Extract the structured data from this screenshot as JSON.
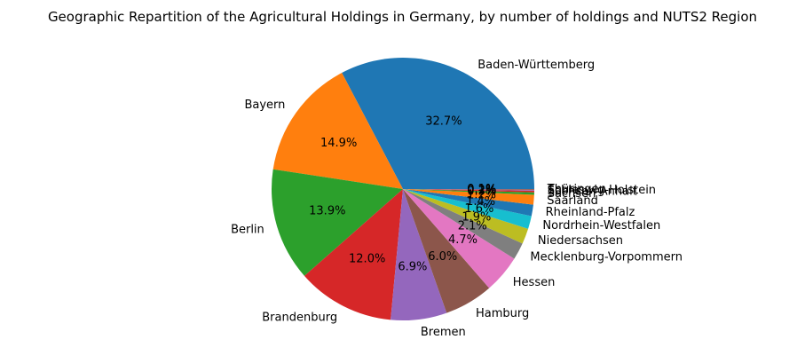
{
  "chart_data": {
    "type": "pie",
    "title": "Geographic Repartition of the Agricultural Holdings in Germany, by number of holdings and NUTS2 Region",
    "categories": [
      "Baden-Württemberg",
      "Bayern",
      "Berlin",
      "Brandenburg",
      "Bremen",
      "Hamburg",
      "Hessen",
      "Mecklenburg-Vorpommern",
      "Niedersachsen",
      "Nordrhein-Westfalen",
      "Rheinland-Pfalz",
      "Saarland",
      "Sachsen",
      "Sachsen-Anhalt",
      "Schleswig-Holstein",
      "Thüringen"
    ],
    "values": [
      32.7,
      14.9,
      13.9,
      12.0,
      6.9,
      6.0,
      4.7,
      2.1,
      1.9,
      1.6,
      1.4,
      1.2,
      0.3,
      0.2,
      0.1,
      0.1
    ],
    "value_labels": [
      "32.7%",
      "14.9%",
      "13.9%",
      "12.0%",
      "6.9%",
      "6.0%",
      "4.7%",
      "2.1%",
      "1.9%",
      "1.6%",
      "1.4%",
      "1.2%",
      "0.3%",
      "0.2%",
      "0.1%",
      "0.1%"
    ],
    "colors": [
      "#1f77b4",
      "#ff7f0e",
      "#2ca02c",
      "#d62728",
      "#9467bd",
      "#8c564b",
      "#e377c2",
      "#7f7f7f",
      "#bcbd22",
      "#17becf",
      "#1f77b4",
      "#ff7f0e",
      "#2ca02c",
      "#d62728",
      "#9467bd",
      "#8c564b"
    ],
    "start_angle": 0,
    "direction": "counterclockwise"
  }
}
